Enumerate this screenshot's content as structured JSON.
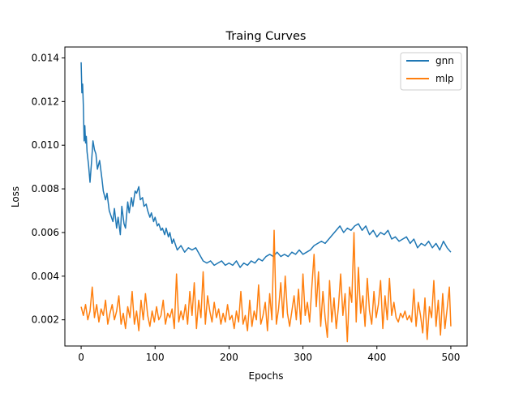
{
  "chart_data": {
    "type": "line",
    "title": "Traing Curves",
    "xlabel": "Epochs",
    "ylabel": "Loss",
    "xlim": [
      -22,
      522
    ],
    "ylim": [
      0.0008,
      0.0145
    ],
    "xticks": [
      0,
      100,
      200,
      300,
      400,
      500
    ],
    "xtick_labels": [
      "0",
      "100",
      "200",
      "300",
      "400",
      "500"
    ],
    "yticks": [
      0.002,
      0.004,
      0.006,
      0.008,
      0.01,
      0.012,
      0.014
    ],
    "ytick_labels": [
      "0.002",
      "0.004",
      "0.006",
      "0.008",
      "0.010",
      "0.012",
      "0.014"
    ],
    "grid": false,
    "legend_position": "top-right",
    "series": [
      {
        "name": "gnn",
        "color": "#1f77b4",
        "x": [
          0,
          1,
          2,
          3,
          4,
          5,
          6,
          7,
          8,
          10,
          12,
          14,
          16,
          18,
          20,
          22,
          25,
          28,
          30,
          33,
          35,
          38,
          40,
          43,
          45,
          48,
          50,
          53,
          55,
          58,
          60,
          63,
          65,
          68,
          70,
          73,
          75,
          78,
          80,
          83,
          85,
          88,
          90,
          93,
          95,
          98,
          100,
          103,
          105,
          108,
          110,
          113,
          115,
          118,
          120,
          123,
          125,
          128,
          130,
          135,
          140,
          145,
          150,
          155,
          160,
          165,
          170,
          175,
          180,
          185,
          190,
          195,
          200,
          205,
          210,
          215,
          220,
          225,
          230,
          235,
          240,
          245,
          250,
          255,
          260,
          265,
          270,
          275,
          280,
          285,
          290,
          295,
          300,
          305,
          310,
          315,
          320,
          325,
          330,
          335,
          340,
          345,
          350,
          355,
          360,
          365,
          370,
          375,
          380,
          385,
          390,
          395,
          400,
          405,
          410,
          415,
          420,
          425,
          430,
          435,
          440,
          445,
          450,
          455,
          460,
          465,
          470,
          475,
          480,
          485,
          490,
          495,
          500
        ],
        "values": [
          0.0138,
          0.0124,
          0.0128,
          0.0118,
          0.0102,
          0.0109,
          0.0101,
          0.0104,
          0.0097,
          0.0091,
          0.0083,
          0.0092,
          0.0102,
          0.0098,
          0.0096,
          0.0089,
          0.0093,
          0.0085,
          0.0079,
          0.0075,
          0.0078,
          0.007,
          0.0068,
          0.0065,
          0.0071,
          0.0062,
          0.0067,
          0.0059,
          0.0072,
          0.0064,
          0.0062,
          0.0074,
          0.0069,
          0.0076,
          0.0072,
          0.0079,
          0.0078,
          0.0081,
          0.0075,
          0.0076,
          0.0072,
          0.0073,
          0.007,
          0.0067,
          0.0069,
          0.0065,
          0.0067,
          0.0063,
          0.0064,
          0.0061,
          0.0062,
          0.0059,
          0.0062,
          0.0058,
          0.006,
          0.0055,
          0.0057,
          0.0054,
          0.0052,
          0.0054,
          0.0051,
          0.0053,
          0.0052,
          0.0053,
          0.005,
          0.0047,
          0.0046,
          0.0047,
          0.0045,
          0.0046,
          0.0047,
          0.0045,
          0.0046,
          0.0045,
          0.0047,
          0.0044,
          0.0046,
          0.0045,
          0.0047,
          0.0046,
          0.0048,
          0.0047,
          0.0049,
          0.005,
          0.0049,
          0.0051,
          0.0049,
          0.005,
          0.0049,
          0.0051,
          0.005,
          0.0052,
          0.005,
          0.0051,
          0.0052,
          0.0054,
          0.0055,
          0.0056,
          0.0055,
          0.0057,
          0.0059,
          0.0061,
          0.0063,
          0.006,
          0.0062,
          0.0061,
          0.0063,
          0.0064,
          0.0061,
          0.0063,
          0.0059,
          0.0061,
          0.0058,
          0.006,
          0.0059,
          0.0061,
          0.0057,
          0.0058,
          0.0056,
          0.0057,
          0.0058,
          0.0055,
          0.0057,
          0.0053,
          0.0055,
          0.0054,
          0.0056,
          0.0053,
          0.0055,
          0.0052,
          0.0056,
          0.0053,
          0.0051
        ]
      },
      {
        "name": "mlp",
        "color": "#ff7f0e",
        "x": [
          0,
          3,
          6,
          9,
          12,
          15,
          18,
          21,
          24,
          27,
          30,
          33,
          36,
          39,
          42,
          45,
          48,
          51,
          54,
          57,
          60,
          63,
          66,
          69,
          72,
          75,
          78,
          81,
          84,
          87,
          90,
          93,
          96,
          99,
          102,
          105,
          108,
          111,
          114,
          117,
          120,
          123,
          126,
          129,
          132,
          135,
          138,
          141,
          144,
          147,
          150,
          153,
          156,
          159,
          162,
          165,
          168,
          171,
          174,
          177,
          180,
          183,
          186,
          189,
          192,
          195,
          198,
          201,
          204,
          207,
          210,
          213,
          216,
          219,
          222,
          225,
          228,
          231,
          234,
          237,
          240,
          243,
          246,
          249,
          252,
          255,
          258,
          261,
          264,
          267,
          270,
          273,
          276,
          279,
          282,
          285,
          288,
          291,
          294,
          297,
          300,
          303,
          306,
          309,
          312,
          315,
          318,
          321,
          324,
          327,
          330,
          333,
          336,
          339,
          342,
          345,
          348,
          351,
          354,
          357,
          360,
          363,
          366,
          369,
          372,
          375,
          378,
          381,
          384,
          387,
          390,
          393,
          396,
          399,
          402,
          405,
          408,
          411,
          414,
          417,
          420,
          423,
          426,
          429,
          432,
          435,
          438,
          441,
          444,
          447,
          450,
          453,
          456,
          459,
          462,
          465,
          468,
          471,
          474,
          477,
          480,
          483,
          486,
          489,
          492,
          495,
          498,
          500
        ],
        "values": [
          0.0026,
          0.0022,
          0.0027,
          0.002,
          0.0024,
          0.0035,
          0.0021,
          0.0027,
          0.0019,
          0.0025,
          0.0022,
          0.0029,
          0.0018,
          0.0023,
          0.0027,
          0.002,
          0.0024,
          0.0031,
          0.0018,
          0.0023,
          0.0016,
          0.0026,
          0.0021,
          0.0033,
          0.0018,
          0.0024,
          0.0015,
          0.0029,
          0.002,
          0.0032,
          0.0022,
          0.0017,
          0.0024,
          0.0019,
          0.0026,
          0.002,
          0.0022,
          0.0029,
          0.0018,
          0.0023,
          0.0021,
          0.0025,
          0.0016,
          0.0041,
          0.0019,
          0.0024,
          0.002,
          0.0027,
          0.0018,
          0.0033,
          0.0022,
          0.0037,
          0.0016,
          0.0029,
          0.0021,
          0.0042,
          0.0018,
          0.0031,
          0.0024,
          0.0019,
          0.0028,
          0.0021,
          0.0025,
          0.0018,
          0.0023,
          0.0019,
          0.0027,
          0.002,
          0.0022,
          0.0016,
          0.0024,
          0.0019,
          0.0033,
          0.0018,
          0.0022,
          0.0015,
          0.0029,
          0.0017,
          0.0024,
          0.002,
          0.0036,
          0.0018,
          0.0022,
          0.0028,
          0.0015,
          0.0032,
          0.002,
          0.0061,
          0.0018,
          0.0025,
          0.0037,
          0.0021,
          0.004,
          0.0023,
          0.0017,
          0.0024,
          0.0031,
          0.002,
          0.0034,
          0.0018,
          0.0041,
          0.0022,
          0.0028,
          0.0019,
          0.0035,
          0.005,
          0.0026,
          0.0042,
          0.0017,
          0.0033,
          0.0021,
          0.0012,
          0.0038,
          0.0019,
          0.003,
          0.0016,
          0.0026,
          0.0041,
          0.0022,
          0.0032,
          0.001,
          0.0035,
          0.0028,
          0.006,
          0.0019,
          0.0044,
          0.0023,
          0.0031,
          0.0017,
          0.0039,
          0.0024,
          0.0018,
          0.0033,
          0.0021,
          0.0027,
          0.0038,
          0.0016,
          0.0031,
          0.002,
          0.0039,
          0.0022,
          0.0028,
          0.0021,
          0.0019,
          0.0023,
          0.0021,
          0.0024,
          0.002,
          0.0022,
          0.0019,
          0.0034,
          0.0017,
          0.0028,
          0.0022,
          0.0014,
          0.003,
          0.0011,
          0.0026,
          0.0021,
          0.0038,
          0.0017,
          0.0029,
          0.0013,
          0.0032,
          0.0016,
          0.0025,
          0.0035,
          0.0017
        ]
      }
    ]
  }
}
